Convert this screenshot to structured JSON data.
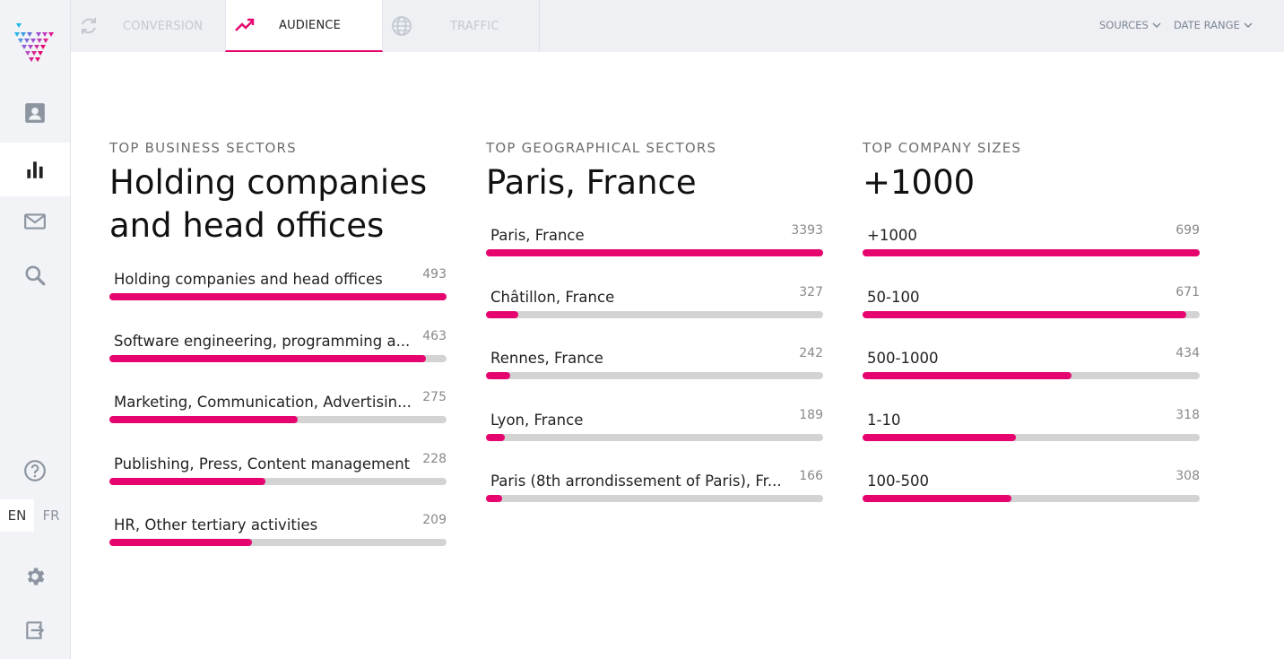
{
  "colors": {
    "accent": "#e6056f",
    "track": "#d3d3d3"
  },
  "nav": {
    "tabs": [
      {
        "label": "CONVERSION",
        "icon": "refresh-icon"
      },
      {
        "label": "AUDIENCE",
        "icon": "trending-up-icon"
      },
      {
        "label": "TRAFFIC",
        "icon": "globe-icon"
      }
    ],
    "filters": {
      "sources": "SOURCES",
      "date_range": "DATE RANGE"
    }
  },
  "sidebar": {
    "items": [
      {
        "icon": "contact-card-icon"
      },
      {
        "icon": "bar-chart-icon",
        "active": true
      },
      {
        "icon": "mail-icon"
      },
      {
        "icon": "search-icon"
      },
      {
        "icon": "help-icon"
      },
      {
        "icon": "gear-icon"
      },
      {
        "icon": "logout-icon"
      }
    ],
    "languages": {
      "en": "EN",
      "fr": "FR",
      "selected": "EN"
    }
  },
  "business": {
    "title": "TOP BUSINESS SECTORS",
    "headline_line1": "Holding companies",
    "headline_line2": "and head offices",
    "rows": [
      {
        "label": "Holding companies and head offices",
        "value": "493",
        "fraction": 1.0
      },
      {
        "label": "Software engineering, programming a...",
        "value": "463",
        "fraction": 0.939
      },
      {
        "label": "Marketing, Communication, Advertisin...",
        "value": "275",
        "fraction": 0.558
      },
      {
        "label": "Publishing, Press, Content management",
        "value": "228",
        "fraction": 0.4625
      },
      {
        "label": "HR, Other tertiary activities",
        "value": "209",
        "fraction": 0.424
      }
    ]
  },
  "geo": {
    "title": "TOP GEOGRAPHICAL SECTORS",
    "headline": "Paris, France",
    "rows": [
      {
        "label": "Paris, France",
        "value": "3393",
        "fraction": 1.0
      },
      {
        "label": "Châtillon, France",
        "value": "327",
        "fraction": 0.0964
      },
      {
        "label": "Rennes, France",
        "value": "242",
        "fraction": 0.0713
      },
      {
        "label": "Lyon, France",
        "value": "189",
        "fraction": 0.0557
      },
      {
        "label": "Paris (8th arrondissement of Paris), Fr...",
        "value": "166",
        "fraction": 0.0489
      }
    ]
  },
  "sizes": {
    "title": "TOP COMPANY SIZES",
    "headline": "+1000",
    "rows": [
      {
        "label": "+1000",
        "value": "699",
        "fraction": 1.0
      },
      {
        "label": "50-100",
        "value": "671",
        "fraction": 0.96
      },
      {
        "label": "500-1000",
        "value": "434",
        "fraction": 0.621
      },
      {
        "label": "1-10",
        "value": "318",
        "fraction": 0.455
      },
      {
        "label": "100-500",
        "value": "308",
        "fraction": 0.441
      }
    ]
  }
}
